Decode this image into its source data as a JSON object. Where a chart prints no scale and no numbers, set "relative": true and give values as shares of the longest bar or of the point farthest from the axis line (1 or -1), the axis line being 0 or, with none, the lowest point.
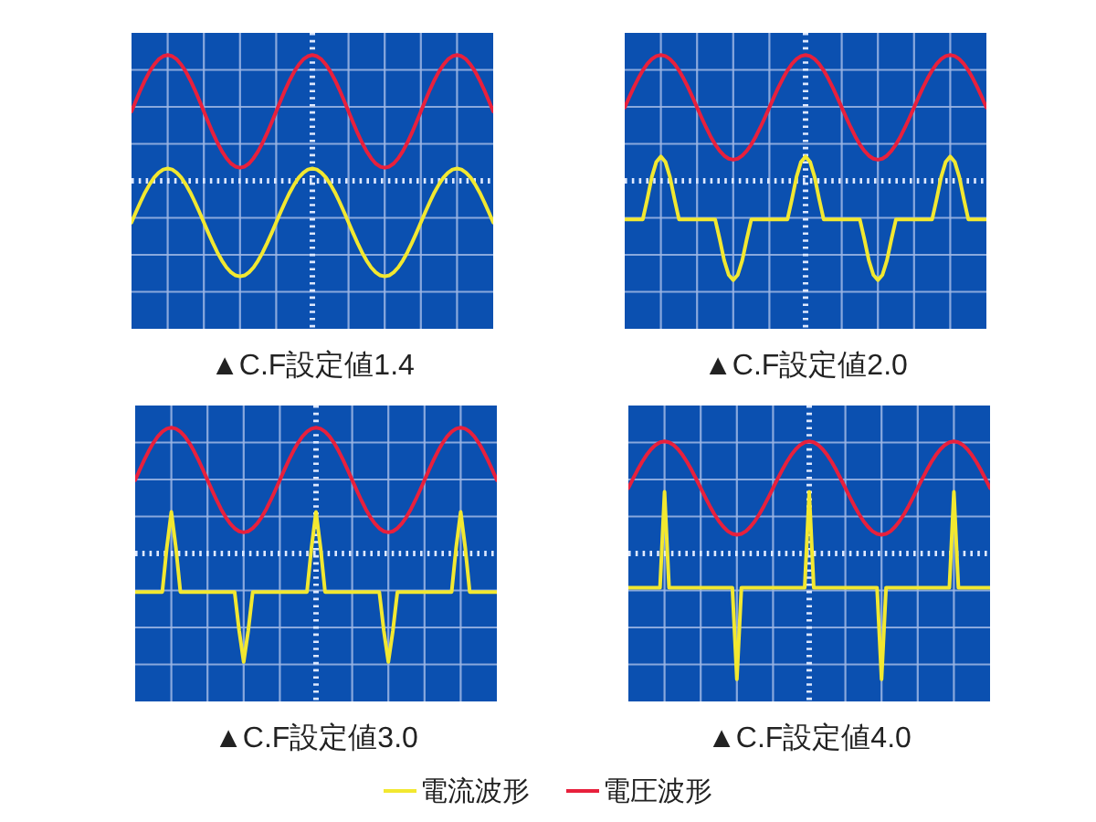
{
  "chart_data": [
    {
      "type": "line",
      "title": "▲C.F設定値1.4",
      "relative": true,
      "grid": true,
      "legend": "bottom",
      "ref_lines": [
        {
          "axis": "y",
          "value": 0,
          "color": "#dde8ff",
          "line_style": "dotted"
        }
      ],
      "categories": [
        null,
        null,
        null,
        null,
        null,
        null,
        null,
        null,
        null,
        null,
        null,
        null,
        null,
        null,
        null,
        null,
        null,
        null,
        null,
        null,
        null,
        null,
        null,
        null,
        null,
        null,
        null,
        null,
        null,
        null,
        null,
        null,
        null,
        null,
        null,
        null,
        null,
        null,
        null,
        null,
        null,
        null,
        null,
        null,
        null,
        null,
        null,
        null,
        null,
        null,
        null,
        null,
        null,
        null,
        null,
        null,
        null,
        null,
        null,
        null,
        null,
        null,
        null,
        null,
        null,
        null,
        null,
        null,
        null,
        null,
        null,
        null,
        null,
        null,
        null,
        null,
        null,
        null,
        null,
        null,
        null
      ],
      "series": [
        {
          "name": "電流波形",
          "color": "#f2e830",
          "values": [
            -0.331,
            -0.247,
            -0.167,
            -0.092,
            -0.028,
            0.026,
            0.065,
            0.09,
            0.098,
            0.09,
            0.065,
            0.026,
            -0.028,
            -0.092,
            -0.167,
            -0.247,
            -0.331,
            -0.415,
            -0.495,
            -0.57,
            -0.634,
            -0.688,
            -0.727,
            -0.752,
            -0.76,
            -0.752,
            -0.727,
            -0.688,
            -0.634,
            -0.57,
            -0.495,
            -0.415,
            -0.331,
            -0.247,
            -0.167,
            -0.092,
            -0.028,
            0.026,
            0.065,
            0.09,
            0.098,
            0.09,
            0.065,
            0.026,
            -0.028,
            -0.092,
            -0.167,
            -0.247,
            -0.331,
            -0.415,
            -0.495,
            -0.57,
            -0.634,
            -0.688,
            -0.727,
            -0.752,
            -0.76,
            -0.752,
            -0.727,
            -0.688,
            -0.634,
            -0.57,
            -0.495,
            -0.415,
            -0.331,
            -0.247,
            -0.167,
            -0.092,
            -0.028,
            0.026,
            0.065,
            0.09,
            0.098,
            0.09,
            0.065,
            0.026,
            -0.028,
            -0.092,
            -0.167,
            -0.247,
            -0.331
          ]
        },
        {
          "name": "電圧波形",
          "color": "#e8203c",
          "values": [
            0.552,
            0.639,
            0.724,
            0.801,
            0.869,
            0.924,
            0.966,
            0.991,
            1,
            0.991,
            0.966,
            0.924,
            0.869,
            0.801,
            0.724,
            0.639,
            0.552,
            0.465,
            0.38,
            0.303,
            0.235,
            0.18,
            0.138,
            0.113,
            0.104,
            0.113,
            0.138,
            0.18,
            0.235,
            0.303,
            0.38,
            0.465,
            0.552,
            0.639,
            0.724,
            0.801,
            0.869,
            0.924,
            0.966,
            0.991,
            1,
            0.991,
            0.966,
            0.924,
            0.869,
            0.801,
            0.724,
            0.639,
            0.552,
            0.465,
            0.38,
            0.303,
            0.235,
            0.18,
            0.138,
            0.113,
            0.104,
            0.113,
            0.138,
            0.18,
            0.235,
            0.303,
            0.38,
            0.465,
            0.552,
            0.639,
            0.724,
            0.801,
            0.869,
            0.924,
            0.966,
            0.991,
            1,
            0.991,
            0.966,
            0.924,
            0.869,
            0.801,
            0.724,
            0.639,
            0.552
          ]
        }
      ]
    },
    {
      "type": "line",
      "title": "▲C.F設定値2.0",
      "relative": true,
      "grid": true,
      "ref_lines": [
        {
          "axis": "y",
          "value": 0,
          "color": "#dde8ff",
          "line_style": "dotted"
        }
      ],
      "categories": [
        null,
        null,
        null,
        null,
        null,
        null,
        null,
        null,
        null,
        null,
        null,
        null,
        null,
        null,
        null,
        null,
        null,
        null,
        null,
        null,
        null,
        null,
        null,
        null,
        null,
        null,
        null,
        null,
        null,
        null,
        null,
        null,
        null,
        null,
        null,
        null,
        null,
        null,
        null,
        null,
        null,
        null,
        null,
        null,
        null,
        null,
        null,
        null,
        null,
        null,
        null,
        null,
        null,
        null,
        null,
        null,
        null,
        null,
        null,
        null,
        null,
        null,
        null,
        null,
        null,
        null,
        null,
        null,
        null,
        null,
        null,
        null,
        null,
        null,
        null,
        null,
        null,
        null,
        null,
        null,
        null
      ],
      "series": [
        {
          "name": "電流波形",
          "color": "#f2e830",
          "values": [
            -0.306,
            -0.306,
            -0.306,
            -0.306,
            -0.306,
            -0.144,
            0.032,
            0.151,
            0.193,
            0.151,
            0.032,
            -0.144,
            -0.306,
            -0.306,
            -0.306,
            -0.306,
            -0.306,
            -0.306,
            -0.306,
            -0.306,
            -0.306,
            -0.463,
            -0.633,
            -0.748,
            -0.789,
            -0.748,
            -0.633,
            -0.463,
            -0.306,
            -0.306,
            -0.306,
            -0.306,
            -0.306,
            -0.306,
            -0.306,
            -0.306,
            -0.306,
            -0.144,
            0.032,
            0.151,
            0.193,
            0.151,
            0.032,
            -0.144,
            -0.306,
            -0.306,
            -0.306,
            -0.306,
            -0.306,
            -0.306,
            -0.306,
            -0.306,
            -0.306,
            -0.463,
            -0.633,
            -0.748,
            -0.789,
            -0.748,
            -0.633,
            -0.463,
            -0.306,
            -0.306,
            -0.306,
            -0.306,
            -0.306,
            -0.306,
            -0.306,
            -0.306,
            -0.306,
            -0.144,
            0.032,
            0.151,
            0.193,
            0.151,
            0.032,
            -0.144,
            -0.306,
            -0.306,
            -0.306,
            -0.306,
            -0.306
          ]
        },
        {
          "name": "電圧波形",
          "color": "#e8203c",
          "values": [
            0.584,
            0.665,
            0.743,
            0.815,
            0.878,
            0.93,
            0.968,
            0.992,
            1,
            0.992,
            0.968,
            0.93,
            0.878,
            0.815,
            0.743,
            0.665,
            0.584,
            0.503,
            0.425,
            0.353,
            0.29,
            0.238,
            0.2,
            0.176,
            0.168,
            0.176,
            0.2,
            0.238,
            0.29,
            0.353,
            0.425,
            0.503,
            0.584,
            0.665,
            0.743,
            0.815,
            0.878,
            0.93,
            0.968,
            0.992,
            1,
            0.992,
            0.968,
            0.93,
            0.878,
            0.815,
            0.743,
            0.665,
            0.584,
            0.503,
            0.425,
            0.353,
            0.29,
            0.238,
            0.2,
            0.176,
            0.168,
            0.176,
            0.2,
            0.238,
            0.29,
            0.353,
            0.425,
            0.503,
            0.584,
            0.665,
            0.743,
            0.815,
            0.878,
            0.93,
            0.968,
            0.992,
            1,
            0.992,
            0.968,
            0.93,
            0.878,
            0.815,
            0.743,
            0.665,
            0.584
          ]
        }
      ]
    },
    {
      "type": "line",
      "title": "▲C.F設定値3.0",
      "relative": true,
      "grid": true,
      "ref_lines": [
        {
          "axis": "y",
          "value": 0,
          "color": "#dde8ff",
          "line_style": "dotted"
        }
      ],
      "categories": [
        null,
        null,
        null,
        null,
        null,
        null,
        null,
        null,
        null,
        null,
        null,
        null,
        null,
        null,
        null,
        null,
        null,
        null,
        null,
        null,
        null,
        null,
        null,
        null,
        null,
        null,
        null,
        null,
        null,
        null,
        null,
        null,
        null,
        null,
        null,
        null,
        null,
        null,
        null,
        null,
        null,
        null,
        null,
        null,
        null,
        null,
        null,
        null,
        null,
        null,
        null,
        null,
        null,
        null,
        null,
        null,
        null,
        null,
        null,
        null,
        null,
        null,
        null,
        null,
        null,
        null,
        null,
        null,
        null,
        null,
        null,
        null,
        null,
        null,
        null,
        null,
        null,
        null,
        null,
        null,
        null
      ],
      "series": [
        {
          "name": "電流波形",
          "color": "#f2e830",
          "values": [
            -0.306,
            -0.306,
            -0.306,
            -0.306,
            -0.306,
            -0.306,
            -0.306,
            0.048,
            0.33,
            0.048,
            -0.306,
            -0.306,
            -0.306,
            -0.306,
            -0.306,
            -0.306,
            -0.306,
            -0.306,
            -0.306,
            -0.306,
            -0.306,
            -0.306,
            -0.306,
            -0.615,
            -0.862,
            -0.615,
            -0.306,
            -0.306,
            -0.306,
            -0.306,
            -0.306,
            -0.306,
            -0.306,
            -0.306,
            -0.306,
            -0.306,
            -0.306,
            -0.306,
            -0.306,
            0.048,
            0.33,
            0.048,
            -0.306,
            -0.306,
            -0.306,
            -0.306,
            -0.306,
            -0.306,
            -0.306,
            -0.306,
            -0.306,
            -0.306,
            -0.306,
            -0.306,
            -0.306,
            -0.615,
            -0.862,
            -0.615,
            -0.306,
            -0.306,
            -0.306,
            -0.306,
            -0.306,
            -0.306,
            -0.306,
            -0.306,
            -0.306,
            -0.306,
            -0.306,
            -0.306,
            -0.306,
            0.048,
            0.33,
            0.048,
            -0.306,
            -0.306,
            -0.306,
            -0.306,
            -0.306,
            -0.306,
            -0.306
          ]
        },
        {
          "name": "電圧波形",
          "color": "#e8203c",
          "values": [
            0.584,
            0.665,
            0.743,
            0.815,
            0.878,
            0.93,
            0.968,
            0.992,
            1,
            0.992,
            0.968,
            0.93,
            0.878,
            0.815,
            0.743,
            0.665,
            0.584,
            0.503,
            0.425,
            0.353,
            0.29,
            0.238,
            0.2,
            0.176,
            0.168,
            0.176,
            0.2,
            0.238,
            0.29,
            0.353,
            0.425,
            0.503,
            0.584,
            0.665,
            0.743,
            0.815,
            0.878,
            0.93,
            0.968,
            0.992,
            1,
            0.992,
            0.968,
            0.93,
            0.878,
            0.815,
            0.743,
            0.665,
            0.584,
            0.503,
            0.425,
            0.353,
            0.29,
            0.238,
            0.2,
            0.176,
            0.168,
            0.176,
            0.2,
            0.238,
            0.29,
            0.353,
            0.425,
            0.503,
            0.584,
            0.665,
            0.743,
            0.815,
            0.878,
            0.93,
            0.968,
            0.992,
            1,
            0.992,
            0.968,
            0.93,
            0.878,
            0.815,
            0.743,
            0.665,
            0.584
          ]
        }
      ]
    },
    {
      "type": "line",
      "title": "▲C.F設定値4.0",
      "relative": true,
      "grid": true,
      "ref_lines": [
        {
          "axis": "y",
          "value": 0,
          "color": "#dde8ff",
          "line_style": "dotted"
        }
      ],
      "categories": [
        null,
        null,
        null,
        null,
        null,
        null,
        null,
        null,
        null,
        null,
        null,
        null,
        null,
        null,
        null,
        null,
        null,
        null,
        null,
        null,
        null,
        null,
        null,
        null,
        null,
        null,
        null,
        null,
        null,
        null,
        null,
        null,
        null,
        null,
        null,
        null,
        null,
        null,
        null,
        null,
        null,
        null,
        null,
        null,
        null,
        null,
        null,
        null,
        null,
        null,
        null,
        null,
        null,
        null,
        null,
        null,
        null,
        null,
        null,
        null,
        null,
        null,
        null,
        null,
        null,
        null,
        null,
        null,
        null,
        null,
        null,
        null,
        null,
        null,
        null,
        null,
        null,
        null,
        null,
        null,
        null
      ],
      "series": [
        {
          "name": "電流波形",
          "color": "#f2e830",
          "values": [
            -0.272,
            -0.272,
            -0.272,
            -0.272,
            -0.272,
            -0.272,
            -0.272,
            -0.272,
            0.49,
            -0.272,
            -0.272,
            -0.272,
            -0.272,
            -0.272,
            -0.272,
            -0.272,
            -0.272,
            -0.272,
            -0.272,
            -0.272,
            -0.272,
            -0.272,
            -0.272,
            -0.272,
            -1,
            -0.272,
            -0.272,
            -0.272,
            -0.272,
            -0.272,
            -0.272,
            -0.272,
            -0.272,
            -0.272,
            -0.272,
            -0.272,
            -0.272,
            -0.272,
            -0.272,
            -0.272,
            0.49,
            -0.272,
            -0.272,
            -0.272,
            -0.272,
            -0.272,
            -0.272,
            -0.272,
            -0.272,
            -0.272,
            -0.272,
            -0.272,
            -0.272,
            -0.272,
            -0.272,
            -0.272,
            -1,
            -0.272,
            -0.272,
            -0.272,
            -0.272,
            -0.272,
            -0.272,
            -0.272,
            -0.272,
            -0.272,
            -0.272,
            -0.272,
            -0.272,
            -0.272,
            -0.272,
            -0.272,
            0.49,
            -0.272,
            -0.272,
            -0.272,
            -0.272,
            -0.272,
            -0.272,
            -0.272,
            -0.272
          ]
        },
        {
          "name": "電圧波形",
          "color": "#e8203c",
          "values": [
            0.52,
            0.592,
            0.662,
            0.726,
            0.782,
            0.828,
            0.863,
            0.884,
            0.891,
            0.884,
            0.863,
            0.828,
            0.782,
            0.726,
            0.662,
            0.592,
            0.52,
            0.448,
            0.378,
            0.314,
            0.258,
            0.212,
            0.177,
            0.156,
            0.149,
            0.156,
            0.177,
            0.212,
            0.258,
            0.314,
            0.378,
            0.448,
            0.52,
            0.592,
            0.662,
            0.726,
            0.782,
            0.828,
            0.863,
            0.884,
            0.891,
            0.884,
            0.863,
            0.828,
            0.782,
            0.726,
            0.662,
            0.592,
            0.52,
            0.448,
            0.378,
            0.314,
            0.258,
            0.212,
            0.177,
            0.156,
            0.149,
            0.156,
            0.177,
            0.212,
            0.258,
            0.314,
            0.378,
            0.448,
            0.52,
            0.592,
            0.662,
            0.726,
            0.782,
            0.828,
            0.863,
            0.884,
            0.891,
            0.884,
            0.863,
            0.828,
            0.782,
            0.726,
            0.662,
            0.592,
            0.52
          ]
        }
      ]
    }
  ]
}
